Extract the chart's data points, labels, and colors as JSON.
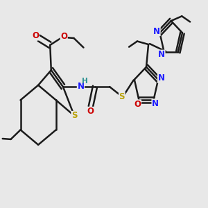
{
  "bg_color": "#e8e8e8",
  "bond_color": "#1a1a1a",
  "bond_width": 1.8,
  "fig_size": [
    3.0,
    3.0
  ],
  "dpi": 100,
  "xlim": [
    0.0,
    1.0
  ],
  "ylim": [
    0.0,
    1.0
  ]
}
